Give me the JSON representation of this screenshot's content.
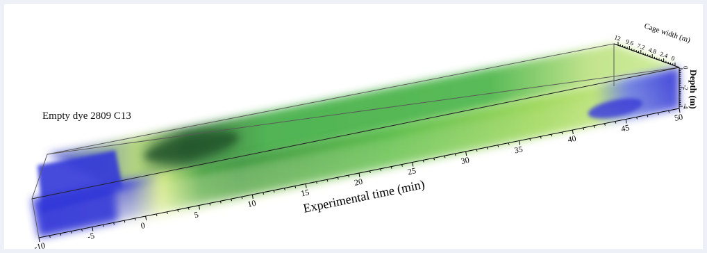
{
  "run_label": "Empty dye 2809 C13",
  "chart_data": {
    "type": "volume-3d",
    "x_axis": {
      "label": "Experimental time (min)",
      "range": [
        -10,
        50
      ],
      "ticks": [
        -10,
        -5,
        0,
        5,
        10,
        15,
        20,
        25,
        30,
        35,
        40,
        45,
        50
      ]
    },
    "y_axis": {
      "label": "Cage width (m)",
      "ticks": [
        "12",
        "9.6",
        "7.2",
        "4.8",
        "2.4",
        "0"
      ]
    },
    "z_axis": {
      "label": "Depth (m)",
      "ticks": [
        "0",
        "-2",
        "-4"
      ]
    },
    "colors": {
      "low": "#2b2fd6",
      "mid": "#26a82c",
      "high": "#1c4a24",
      "edge": "#e6f28a"
    },
    "dye_regions": [
      {
        "from": -10,
        "to": -3,
        "level": "low"
      },
      {
        "from": -3,
        "to": 2,
        "level": "high"
      },
      {
        "from": 2,
        "to": 36,
        "level": "mid"
      },
      {
        "from": 36,
        "to": 42,
        "level": "edge"
      },
      {
        "from": 42,
        "to": 50,
        "level": "low"
      }
    ]
  }
}
